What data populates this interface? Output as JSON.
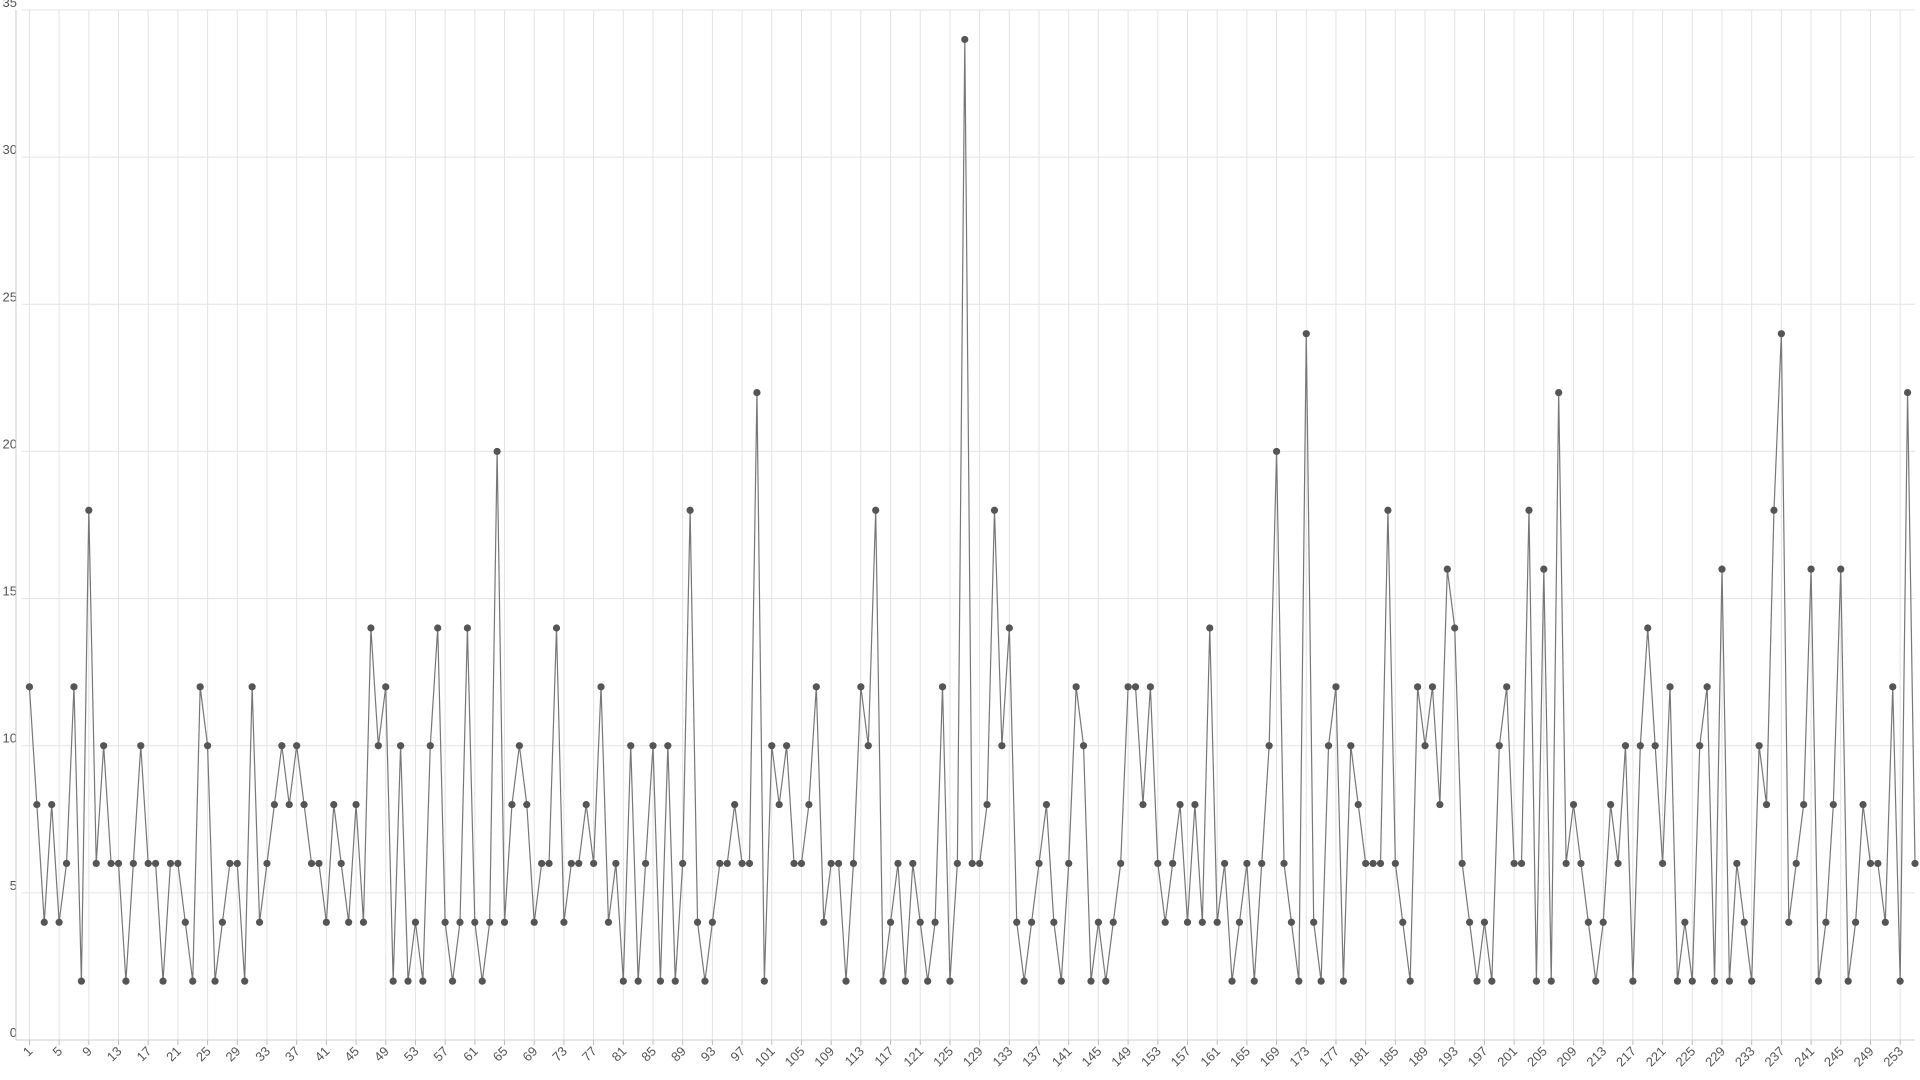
{
  "chart_data": {
    "type": "line",
    "color": "#777777",
    "marker_color": "#555555",
    "grid": true,
    "x": [
      1,
      2,
      3,
      4,
      5,
      6,
      7,
      8,
      9,
      10,
      11,
      12,
      13,
      14,
      15,
      16,
      17,
      18,
      19,
      20,
      21,
      22,
      23,
      24,
      25,
      26,
      27,
      28,
      29,
      30,
      31,
      32,
      33,
      34,
      35,
      36,
      37,
      38,
      39,
      40,
      41,
      42,
      43,
      44,
      45,
      46,
      47,
      48,
      49,
      50,
      51,
      52,
      53,
      54,
      55,
      56,
      57,
      58,
      59,
      60,
      61,
      62,
      63,
      64,
      65,
      66,
      67,
      68,
      69,
      70,
      71,
      72,
      73,
      74,
      75,
      76,
      77,
      78,
      79,
      80,
      81,
      82,
      83,
      84,
      85,
      86,
      87,
      88,
      89,
      90,
      91,
      92,
      93,
      94,
      95,
      96,
      97,
      98,
      99,
      100,
      101,
      102,
      103,
      104,
      105,
      106,
      107,
      108,
      109,
      110,
      111,
      112,
      113,
      114,
      115,
      116,
      117,
      118,
      119,
      120,
      121,
      122,
      123,
      124,
      125,
      126,
      127,
      128,
      129,
      130,
      131,
      132,
      133,
      134,
      135,
      136,
      137,
      138,
      139,
      140,
      141,
      142,
      143,
      144,
      145,
      146,
      147,
      148,
      149,
      150,
      151,
      152,
      153,
      154,
      155,
      156,
      157,
      158,
      159,
      160,
      161,
      162,
      163,
      164,
      165,
      166,
      167,
      168,
      169,
      170,
      171,
      172,
      173,
      174,
      175,
      176,
      177,
      178,
      179,
      180,
      181,
      182,
      183,
      184,
      185,
      186,
      187,
      188,
      189,
      190,
      191,
      192,
      193,
      194,
      195,
      196,
      197,
      198,
      199,
      200,
      201,
      202,
      203,
      204,
      205,
      206,
      207,
      208,
      209,
      210,
      211,
      212,
      213,
      214,
      215,
      216,
      217,
      218,
      219,
      220,
      221,
      222,
      223,
      224,
      225,
      226,
      227,
      228,
      229,
      230,
      231,
      232,
      233,
      234,
      235,
      236,
      237,
      238,
      239,
      240,
      241,
      242,
      243,
      244,
      245,
      246,
      247,
      248,
      249,
      250,
      251,
      252,
      253,
      254,
      255
    ],
    "values": [
      12,
      8,
      4,
      8,
      4,
      6,
      12,
      2,
      18,
      6,
      10,
      6,
      6,
      2,
      6,
      10,
      6,
      6,
      2,
      6,
      6,
      4,
      2,
      12,
      10,
      2,
      4,
      6,
      6,
      2,
      12,
      4,
      6,
      8,
      10,
      8,
      10,
      8,
      6,
      6,
      4,
      8,
      6,
      4,
      8,
      4,
      14,
      10,
      12,
      2,
      10,
      2,
      4,
      2,
      10,
      14,
      4,
      2,
      4,
      14,
      4,
      2,
      4,
      20,
      4,
      8,
      10,
      8,
      4,
      6,
      6,
      14,
      4,
      6,
      6,
      8,
      6,
      12,
      4,
      6,
      2,
      10,
      2,
      6,
      10,
      2,
      10,
      2,
      6,
      18,
      4,
      2,
      4,
      6,
      6,
      8,
      6,
      6,
      22,
      2,
      10,
      8,
      10,
      6,
      6,
      8,
      12,
      4,
      6,
      6,
      2,
      6,
      12,
      10,
      18,
      2,
      4,
      6,
      2,
      6,
      4,
      2,
      4,
      12,
      2,
      6,
      34,
      6,
      6,
      8,
      18,
      10,
      14,
      4,
      2,
      4,
      6,
      8,
      4,
      2,
      6,
      12,
      10,
      2,
      4,
      2,
      4,
      6,
      12,
      12,
      8,
      12,
      6,
      4,
      6,
      8,
      4,
      8,
      4,
      14,
      4,
      6,
      2,
      4,
      6,
      2,
      6,
      10,
      20,
      6,
      4,
      2,
      24,
      4,
      2,
      10,
      12,
      2,
      10,
      8,
      6,
      6,
      6,
      18,
      6,
      4,
      2,
      12,
      10,
      12,
      8,
      16,
      14,
      6,
      4,
      2,
      4,
      2,
      10,
      12,
      6,
      6,
      18,
      2,
      16,
      2,
      22,
      6,
      8,
      6,
      4,
      2,
      4,
      8,
      6,
      10,
      2,
      10,
      14,
      10,
      6,
      12,
      2,
      4,
      2,
      10,
      12,
      2,
      16,
      2,
      6,
      4,
      2,
      10,
      8,
      18,
      24,
      4,
      6,
      8,
      16,
      2,
      4,
      8,
      16,
      2,
      4,
      8,
      6,
      6,
      4,
      12,
      2,
      22,
      6
    ],
    "xlim": [
      0,
      255
    ],
    "xticks": [
      1,
      5,
      9,
      13,
      17,
      21,
      25,
      29,
      33,
      37,
      41,
      45,
      49,
      53,
      57,
      61,
      65,
      69,
      73,
      77,
      81,
      85,
      89,
      93,
      97,
      101,
      105,
      109,
      113,
      117,
      121,
      125,
      129,
      133,
      137,
      141,
      145,
      149,
      153,
      157,
      161,
      165,
      169,
      173,
      177,
      181,
      185,
      189,
      193,
      197,
      201,
      205,
      209,
      213,
      217,
      221,
      225,
      229,
      233,
      237,
      241,
      245,
      249,
      253
    ],
    "ylim": [
      0,
      35
    ],
    "yticks": [
      0,
      5,
      10,
      15,
      20,
      25,
      30,
      35
    ]
  }
}
